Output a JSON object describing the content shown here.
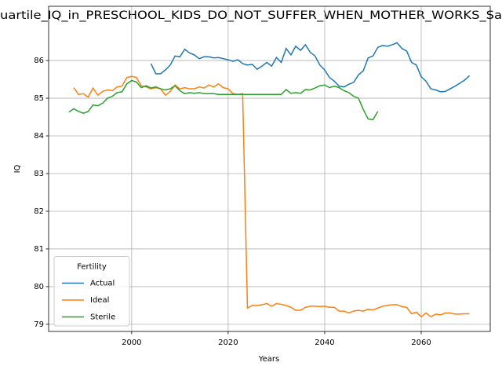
{
  "chart_data": {
    "type": "line",
    "title": "uartile_IQ_in_PRESCHOOL_KIDS_DO_NOT_SUFFER_WHEN_MOTHER_WORKS_Sa",
    "xlabel": "Years",
    "ylabel": "IQ",
    "x": [
      1987,
      1988,
      1989,
      1990,
      1991,
      1992,
      1993,
      1994,
      1995,
      1996,
      1997,
      1998,
      1999,
      2000,
      2001,
      2002,
      2003,
      2004,
      2005,
      2006,
      2007,
      2008,
      2009,
      2010,
      2011,
      2012,
      2013,
      2014,
      2015,
      2016,
      2017,
      2018,
      2019,
      2020,
      2021,
      2022,
      2023,
      2024,
      2025,
      2026,
      2027,
      2028,
      2029,
      2030,
      2031,
      2032,
      2033,
      2034,
      2035,
      2036,
      2037,
      2038,
      2039,
      2040,
      2041,
      2042,
      2043,
      2044,
      2045,
      2046,
      2047,
      2048,
      2049,
      2050,
      2051,
      2052,
      2053,
      2054,
      2055,
      2056,
      2057,
      2058,
      2059,
      2060,
      2061,
      2062,
      2063,
      2064,
      2065,
      2066,
      2067,
      2068,
      2069,
      2070
    ],
    "series": [
      {
        "name": "Actual",
        "color": "#1f77b4",
        "values": [
          null,
          null,
          null,
          null,
          null,
          null,
          null,
          null,
          null,
          null,
          null,
          null,
          null,
          null,
          null,
          null,
          null,
          85.92,
          85.65,
          85.65,
          85.75,
          85.88,
          86.12,
          86.1,
          86.3,
          86.2,
          86.15,
          86.05,
          86.1,
          86.1,
          86.07,
          86.08,
          86.05,
          86.02,
          85.98,
          86.02,
          85.92,
          85.88,
          85.9,
          85.77,
          85.85,
          85.95,
          85.85,
          86.08,
          85.95,
          86.32,
          86.15,
          86.38,
          86.27,
          86.42,
          86.22,
          86.12,
          85.88,
          85.75,
          85.55,
          85.45,
          85.32,
          85.3,
          85.37,
          85.42,
          85.62,
          85.73,
          86.07,
          86.12,
          86.35,
          86.4,
          86.38,
          86.42,
          86.47,
          86.32,
          86.25,
          85.95,
          85.88,
          85.57,
          85.45,
          85.25,
          85.22,
          85.17,
          85.18,
          85.25,
          85.32,
          85.4,
          85.48,
          85.6
        ]
      },
      {
        "name": "Ideal",
        "color": "#ff7f0e",
        "values": [
          null,
          85.28,
          85.1,
          85.12,
          85.03,
          85.27,
          85.08,
          85.18,
          85.22,
          85.2,
          85.3,
          85.32,
          85.55,
          85.58,
          85.55,
          85.33,
          85.3,
          85.25,
          85.28,
          85.25,
          85.08,
          85.18,
          85.35,
          85.25,
          85.28,
          85.25,
          85.25,
          85.3,
          85.27,
          85.35,
          85.3,
          85.38,
          85.28,
          85.25,
          85.12,
          85.1,
          85.12,
          79.43,
          79.5,
          79.5,
          79.52,
          79.55,
          79.48,
          79.55,
          79.53,
          79.5,
          79.45,
          79.37,
          79.37,
          79.45,
          79.48,
          79.48,
          79.47,
          79.48,
          79.45,
          79.45,
          79.35,
          79.35,
          79.3,
          79.35,
          79.37,
          79.35,
          79.4,
          79.38,
          79.43,
          79.48,
          79.5,
          79.52,
          79.52,
          79.47,
          79.45,
          79.28,
          79.32,
          79.2,
          79.3,
          79.2,
          79.27,
          79.25,
          79.3,
          79.3,
          79.27,
          79.27,
          79.28,
          79.28
        ]
      },
      {
        "name": "Sterile",
        "color": "#2ca02c",
        "values": [
          84.63,
          84.72,
          84.65,
          84.6,
          84.65,
          84.82,
          84.8,
          84.87,
          85.0,
          85.05,
          85.15,
          85.17,
          85.38,
          85.47,
          85.43,
          85.28,
          85.33,
          85.27,
          85.3,
          85.25,
          85.22,
          85.25,
          85.33,
          85.2,
          85.12,
          85.15,
          85.13,
          85.15,
          85.12,
          85.12,
          85.12,
          85.1,
          85.1,
          85.1,
          85.1,
          85.1,
          85.1,
          85.1,
          85.1,
          85.1,
          85.1,
          85.1,
          85.1,
          85.1,
          85.1,
          85.23,
          85.13,
          85.15,
          85.13,
          85.23,
          85.22,
          85.27,
          85.33,
          85.35,
          85.28,
          85.32,
          85.28,
          85.2,
          85.15,
          85.05,
          85.0,
          84.7,
          84.45,
          84.43,
          84.65,
          null,
          null,
          null,
          null,
          null,
          null,
          null,
          null,
          null,
          null,
          null,
          null,
          null,
          null,
          null,
          null,
          null,
          null,
          null
        ]
      }
    ],
    "xlim": [
      1982.8,
      2074.3
    ],
    "xticks": [
      2000,
      2020,
      2040,
      2060
    ],
    "ylim": [
      78.81,
      87.44
    ],
    "yticks": [
      79,
      80,
      81,
      82,
      83,
      84,
      85,
      86
    ],
    "grid": true,
    "legend_title": "Fertility",
    "legend_position": "lower left"
  }
}
